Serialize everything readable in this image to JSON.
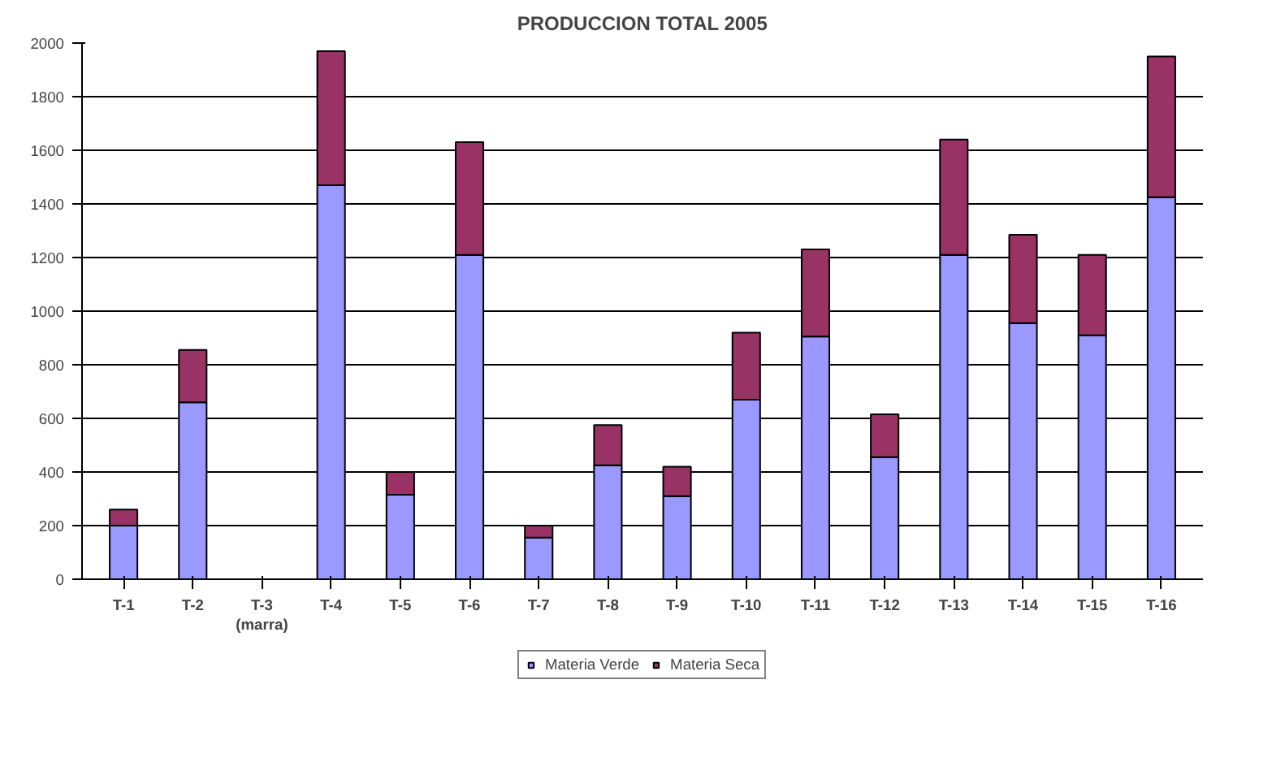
{
  "chart_data": {
    "type": "bar",
    "title": "PRODUCCION TOTAL 2005",
    "stacked": true,
    "categories": [
      "T-1",
      "T-2",
      "T-3\n(marra)",
      "T-4",
      "T-5",
      "T-6",
      "T-7",
      "T-8",
      "T-9",
      "T-10",
      "T-11",
      "T-12",
      "T-13",
      "T-14",
      "T-15",
      "T-16"
    ],
    "series": [
      {
        "name": "Materia Verde",
        "color": "#9999ff",
        "values": [
          200,
          660,
          0,
          1470,
          315,
          1210,
          155,
          425,
          310,
          670,
          905,
          455,
          1210,
          955,
          910,
          1425
        ]
      },
      {
        "name": "Materia Seca",
        "color": "#993366",
        "values": [
          60,
          195,
          0,
          500,
          85,
          420,
          45,
          150,
          110,
          250,
          325,
          160,
          430,
          330,
          300,
          525
        ]
      }
    ],
    "ylim": [
      0,
      2000
    ],
    "yticks": [
      0,
      200,
      400,
      600,
      800,
      1000,
      1200,
      1400,
      1600,
      1800,
      2000
    ],
    "grid": "y",
    "legend": "bottom"
  }
}
